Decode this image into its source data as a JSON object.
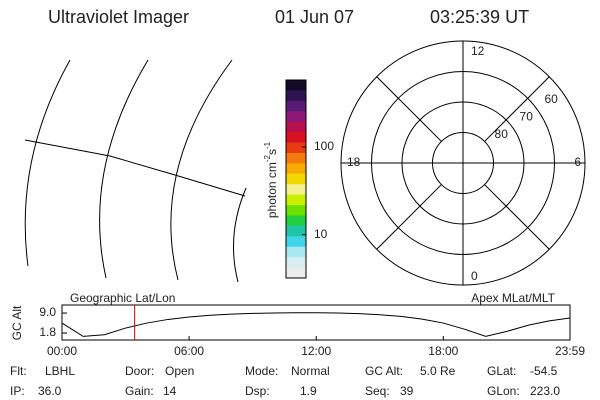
{
  "header": {
    "title": "Ultraviolet Imager",
    "date": "01 Jun 07",
    "time": "03:25:39 UT"
  },
  "colorbar": {
    "label_parts": [
      "photon cm",
      "-2",
      "s",
      "-1"
    ],
    "log": true,
    "lim": [
      3.2,
      580
    ],
    "ticks": [
      10,
      100
    ],
    "colors": [
      "#140a28",
      "#2e1450",
      "#5a1a78",
      "#8c1878",
      "#b8104a",
      "#d81020",
      "#e83a10",
      "#f27a10",
      "#f8aa00",
      "#f2d800",
      "#f4f090",
      "#c8f000",
      "#6ee000",
      "#20d040",
      "#20c4a8",
      "#40d4e8",
      "#a8e8f0",
      "#d8eef0",
      "#ececec"
    ]
  },
  "polar": {
    "lim": [
      90,
      50
    ],
    "rings": [
      60,
      70,
      80
    ],
    "hours": [
      12,
      6,
      0,
      18
    ]
  },
  "chart_data": {
    "type": "line",
    "title_left": "Geographic Lat/Lon",
    "title_right": "Apex MLat/MLT",
    "ylabel": "GC Alt",
    "x": [
      0,
      1,
      2,
      3,
      4,
      5,
      6,
      7,
      8,
      9,
      10,
      11,
      12,
      13,
      14,
      15,
      16,
      17,
      18,
      19,
      20,
      21,
      22,
      23,
      23.98
    ],
    "series": [
      {
        "color": "#000000",
        "values": [
          5.4,
          0.6,
          1.2,
          3.6,
          5.4,
          6.7,
          7.6,
          8.2,
          8.6,
          8.9,
          9.0,
          9.1,
          9.1,
          9.0,
          8.8,
          8.4,
          7.8,
          6.8,
          5.4,
          3.2,
          0.6,
          2.4,
          4.6,
          6.2,
          7.2
        ]
      }
    ],
    "xlim": [
      0,
      23.98
    ],
    "xticks": [
      {
        "value": 0,
        "label": "00:00"
      },
      {
        "value": 6,
        "label": "06:00"
      },
      {
        "value": 12,
        "label": "12:00"
      },
      {
        "value": 18,
        "label": "18:00"
      },
      {
        "value": 23.98,
        "label": "23:59"
      }
    ],
    "ylim": [
      -0.7,
      11.9
    ],
    "yticks": [
      {
        "value": 9,
        "label": "9.0"
      },
      {
        "value": 1.8,
        "label": "1.8"
      }
    ],
    "marker": {
      "x": 3.43,
      "color": "#cc0000"
    }
  },
  "info": [
    [
      {
        "label": "Flt:",
        "value": "LBHL"
      },
      {
        "label": "Door:",
        "value": "Open"
      },
      {
        "label": "Mode:",
        "value": "Normal"
      },
      {
        "label": "GC Alt:",
        "value": "5.0 Re"
      },
      {
        "label": "GLat:",
        "value": "-54.5"
      }
    ],
    [
      {
        "label": "IP:",
        "value": "36.0"
      },
      {
        "label": "Gain:",
        "value": "14"
      },
      {
        "label": "Dsp:",
        "value": "1.9"
      },
      {
        "label": "Seq:",
        "value": "39"
      },
      {
        "label": "GLon:",
        "value": "223.0"
      }
    ]
  ]
}
